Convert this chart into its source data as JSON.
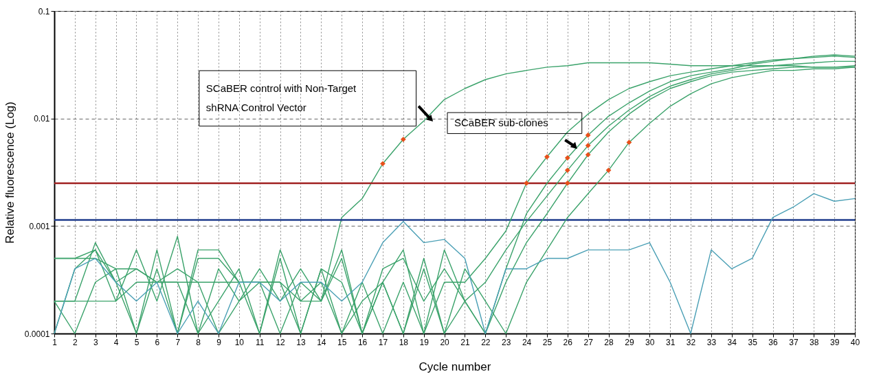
{
  "chart_data": {
    "type": "line",
    "xlabel": "Cycle number",
    "ylabel": "Relative fluorescence (Log)",
    "x": [
      1,
      2,
      3,
      4,
      5,
      6,
      7,
      8,
      9,
      10,
      11,
      12,
      13,
      14,
      15,
      16,
      17,
      18,
      19,
      20,
      21,
      22,
      23,
      24,
      25,
      26,
      27,
      28,
      29,
      30,
      31,
      32,
      33,
      34,
      35,
      36,
      37,
      38,
      39,
      40
    ],
    "xlim": [
      1,
      40
    ],
    "xticks": [
      1,
      2,
      3,
      4,
      5,
      6,
      7,
      8,
      9,
      10,
      11,
      12,
      13,
      14,
      15,
      16,
      17,
      18,
      19,
      20,
      21,
      22,
      23,
      24,
      25,
      26,
      27,
      28,
      29,
      30,
      31,
      32,
      33,
      34,
      35,
      36,
      37,
      38,
      39,
      40
    ],
    "ylim": [
      0.0001,
      0.1
    ],
    "yticks": [
      0.0001,
      0.001,
      0.01,
      0.1
    ],
    "log": "y",
    "grid": true,
    "line_style": "solid",
    "series": [
      {
        "color": "#3aa26a",
        "values": [
          0.0005,
          0.0005,
          0.0005,
          0.0004,
          0.0004,
          0.0003,
          0.0003,
          0.0003,
          0.0003,
          0.0003,
          0.0003,
          0.0003,
          0.0002,
          0.0002,
          0.0012,
          0.0018,
          0.0038,
          0.0064,
          0.0095,
          0.015,
          0.019,
          0.023,
          0.026,
          0.028,
          0.03,
          0.031,
          0.033,
          0.033,
          0.033,
          0.033,
          0.032,
          0.031,
          0.031,
          0.031,
          0.031,
          0.031,
          0.031,
          0.03,
          0.03,
          0.03
        ]
      },
      {
        "color": "#3aa26a",
        "values": [
          0.0002,
          0.0002,
          0.0007,
          0.0003,
          0.0001,
          0.0004,
          0.0001,
          0.0005,
          0.0005,
          0.0003,
          0.0001,
          0.0005,
          0.0001,
          0.0004,
          0.0001,
          0.0003,
          0.0001,
          0.0003,
          0.0001,
          0.0003,
          0.0003,
          0.0005,
          0.0009,
          0.0025,
          0.0044,
          0.0075,
          0.011,
          0.015,
          0.019,
          0.022,
          0.025,
          0.027,
          0.029,
          0.031,
          0.033,
          0.035,
          0.036,
          0.037,
          0.038,
          0.037
        ]
      },
      {
        "color": "#3aa26a",
        "values": [
          0.0001,
          0.0004,
          0.0006,
          0.0003,
          0.0004,
          0.0003,
          0.0003,
          0.0001,
          0.0002,
          0.0004,
          0.0001,
          0.0006,
          0.0002,
          0.0003,
          0.0001,
          0.0002,
          0.0003,
          0.0006,
          0.0001,
          0.0006,
          0.0002,
          0.0001,
          0.0004,
          0.0013,
          0.0025,
          0.0043,
          0.007,
          0.0105,
          0.014,
          0.018,
          0.022,
          0.025,
          0.027,
          0.029,
          0.032,
          0.034,
          0.036,
          0.038,
          0.039,
          0.038
        ]
      },
      {
        "color": "#3aa26a",
        "values": [
          0.0005,
          0.0005,
          0.0006,
          0.0002,
          0.0006,
          0.0002,
          0.0008,
          0.0001,
          0.0004,
          0.0002,
          0.0004,
          0.0002,
          0.0004,
          0.0002,
          0.0006,
          0.0001,
          0.0004,
          0.0005,
          0.0002,
          0.0004,
          0.0002,
          0.0003,
          0.0006,
          0.0011,
          0.0019,
          0.0033,
          0.0056,
          0.0085,
          0.012,
          0.016,
          0.02,
          0.023,
          0.026,
          0.028,
          0.03,
          0.031,
          0.032,
          0.033,
          0.034,
          0.034
        ]
      },
      {
        "color": "#3aa26a",
        "values": [
          0.0002,
          0.0001,
          0.0003,
          0.0004,
          0.0001,
          0.0006,
          0.0001,
          0.0006,
          0.0006,
          0.0003,
          0.0003,
          0.0001,
          0.0003,
          0.0002,
          0.0005,
          0.0001,
          0.0003,
          0.0001,
          0.0004,
          0.0001,
          0.0002,
          0.0001,
          0.0003,
          0.0007,
          0.0013,
          0.0025,
          0.0046,
          0.0075,
          0.011,
          0.015,
          0.019,
          0.022,
          0.025,
          0.027,
          0.028,
          0.029,
          0.03,
          0.03,
          0.03,
          0.031
        ]
      },
      {
        "color": "#3aa26a",
        "values": [
          0.0002,
          0.0002,
          0.0002,
          0.0002,
          0.0003,
          0.0003,
          0.0004,
          0.0003,
          0.0001,
          0.0002,
          0.0003,
          0.0003,
          0.0001,
          0.0004,
          0.0003,
          0.0001,
          0.0003,
          0.0001,
          0.0005,
          0.0001,
          0.0004,
          0.0002,
          0.0001,
          0.0003,
          0.0006,
          0.0012,
          0.002,
          0.0033,
          0.006,
          0.009,
          0.013,
          0.017,
          0.021,
          0.024,
          0.026,
          0.028,
          0.028,
          0.029,
          0.029,
          0.03
        ]
      },
      {
        "color": "#4a9fb5",
        "values": [
          0.0001,
          0.0004,
          0.0005,
          0.0003,
          0.0002,
          0.0003,
          0.0001,
          0.0002,
          0.0001,
          0.0003,
          0.0003,
          0.0002,
          0.0003,
          0.0003,
          0.0002,
          0.0003,
          0.0007,
          0.0011,
          0.0007,
          0.00075,
          0.0005,
          0.0001,
          0.0004,
          0.0004,
          0.0005,
          0.0005,
          0.0006,
          0.0006,
          0.0006,
          0.0007,
          0.0003,
          0.0001,
          0.0006,
          0.0004,
          0.0005,
          0.0012,
          0.0015,
          0.002,
          0.0017,
          0.0018
        ]
      },
      {
        "type": "scatter",
        "marker": "diamond",
        "color": "#e8501a",
        "x": [
          17,
          18,
          24,
          25,
          26,
          26,
          26,
          27,
          27,
          27,
          28,
          29
        ],
        "values": [
          0.0038,
          0.0064,
          0.0025,
          0.0044,
          0.0043,
          0.0033,
          0.0025,
          0.007,
          0.0056,
          0.0046,
          0.0033,
          0.006
        ]
      }
    ],
    "ref_lines": [
      {
        "axis": "y",
        "value": 0.0025,
        "color": "#a02020"
      },
      {
        "axis": "y",
        "value": 0.00114,
        "color": "#1f3c8c"
      }
    ],
    "annotations": [
      "SCaBER control with Non-Target\nshRNA Control Vector",
      "SCaBER sub-clones"
    ]
  }
}
